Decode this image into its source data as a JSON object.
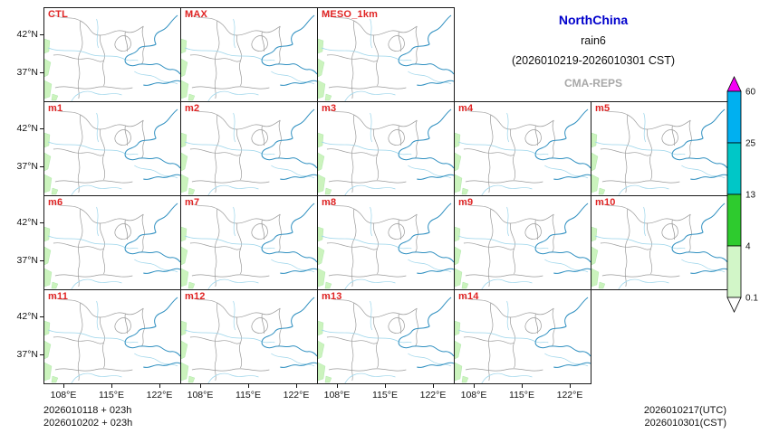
{
  "header": {
    "region": "NorthChina",
    "variable": "rain6",
    "valid_period": "(2026010219-2026010301 CST)",
    "model": "CMA-REPS"
  },
  "rows": [
    {
      "panels": [
        "CTL",
        "MAX",
        "MESO_1km"
      ]
    },
    {
      "panels": [
        "m1",
        "m2",
        "m3",
        "m4",
        "m5"
      ]
    },
    {
      "panels": [
        "m6",
        "m7",
        "m8",
        "m9",
        "m10"
      ]
    },
    {
      "panels": [
        "m11",
        "m12",
        "m13",
        "m14"
      ]
    }
  ],
  "axes": {
    "y_ticks": [
      "42°N",
      "37°N"
    ],
    "x_ticks": [
      "108°E",
      "115°E",
      "122°E"
    ],
    "x_label_columns": 4
  },
  "colorbar": {
    "levels": [
      "60",
      "25",
      "13",
      "4",
      "0.1"
    ],
    "segment_colors": [
      "#00b0f0",
      "#00c7c7",
      "#2ecb2e",
      "#d2f6c8"
    ],
    "over_color": "#f400f4",
    "under_color": "#ffffff"
  },
  "footer": {
    "left": [
      "2026010118 + 023h",
      "2026010202 + 023h"
    ],
    "right": [
      "2026010217(UTC)",
      "2026010301(CST)"
    ]
  }
}
